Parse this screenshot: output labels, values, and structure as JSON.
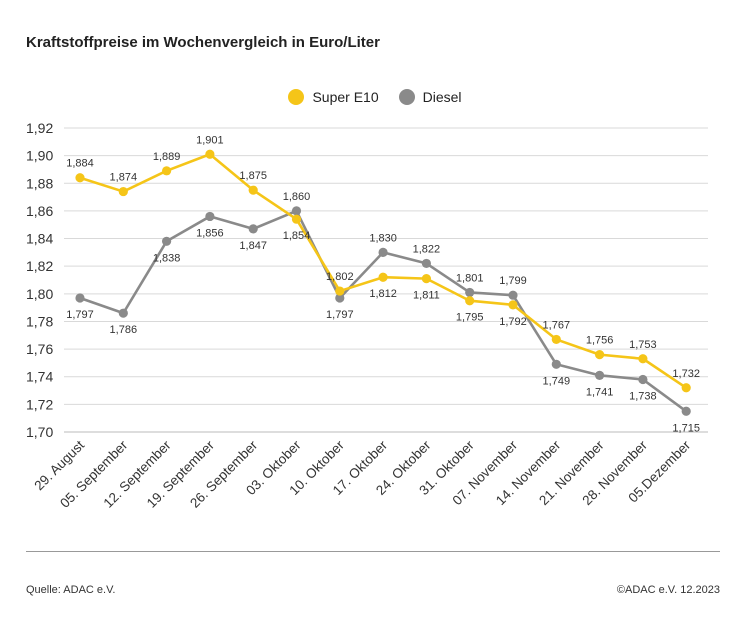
{
  "header": {
    "title": "Kraftstoffpreise im Wochenvergleich in Euro/Liter"
  },
  "footer": {
    "source": "Quelle: ADAC e.V.",
    "copyright": "©ADAC e.V. 12.2023"
  },
  "chart_data": {
    "type": "line",
    "title": "Kraftstoffpreise im Wochenvergleich in Euro/Liter",
    "categories": [
      "29. August",
      "05. September",
      "12. September",
      "19. September",
      "26. September",
      "03. Oktober",
      "10. Oktober",
      "17. Oktober",
      "24. Oktober",
      "31. Oktober",
      "07. November",
      "14. November",
      "21. November",
      "28. November",
      "05.Dezember"
    ],
    "series": [
      {
        "name": "Super E10",
        "color": "#f5c518",
        "values": [
          1.884,
          1.874,
          1.889,
          1.901,
          1.875,
          1.854,
          1.802,
          1.812,
          1.811,
          1.795,
          1.792,
          1.767,
          1.756,
          1.753,
          1.732
        ],
        "labels": [
          "1,884",
          "1,874",
          "1,889",
          "1,901",
          "1,875",
          "1,854",
          "1,802",
          "1,812",
          "1,811",
          "1,795",
          "1,792",
          "1,767",
          "1,756",
          "1,753",
          "1,732"
        ]
      },
      {
        "name": "Diesel",
        "color": "#8a8a8a",
        "values": [
          1.797,
          1.786,
          1.838,
          1.856,
          1.847,
          1.86,
          1.797,
          1.83,
          1.822,
          1.801,
          1.799,
          1.749,
          1.741,
          1.738,
          1.715
        ],
        "labels": [
          "1,797",
          "1,786",
          "1,838",
          "1,856",
          "1,847",
          "1,860",
          "1,797",
          "1,830",
          "1,822",
          "1,801",
          "1,799",
          "1,749",
          "1,741",
          "1,738",
          "1,715"
        ]
      }
    ],
    "yticks": [
      "1,70",
      "1,72",
      "1,74",
      "1,76",
      "1,78",
      "1,80",
      "1,82",
      "1,84",
      "1,86",
      "1,88",
      "1,90",
      "1,92"
    ],
    "ylim": [
      1.7,
      1.92
    ],
    "grid": true,
    "legend": "top-center"
  }
}
